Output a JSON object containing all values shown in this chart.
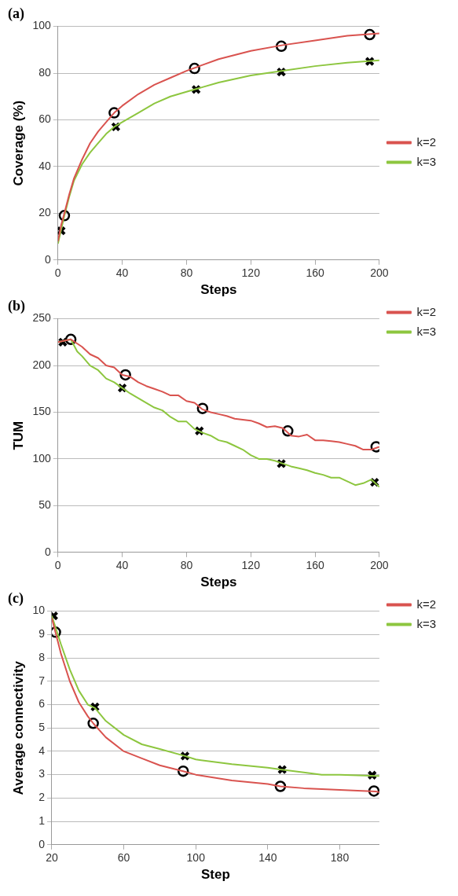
{
  "chart_data": [
    {
      "type": "line",
      "title": "(a)",
      "xlabel": "Steps",
      "ylabel": "Coverage (%)",
      "xlim": [
        0,
        200
      ],
      "xticks": [
        0,
        40,
        80,
        120,
        160,
        200
      ],
      "ylim": [
        0,
        100
      ],
      "yticks": [
        0,
        20,
        40,
        60,
        80,
        100
      ],
      "grid": "y",
      "legend": "right",
      "series": [
        {
          "name": "k=2",
          "color": "#d9534f",
          "x": [
            0,
            2,
            4,
            7,
            10,
            15,
            20,
            25,
            30,
            35,
            40,
            50,
            60,
            70,
            80,
            90,
            100,
            120,
            140,
            160,
            180,
            200
          ],
          "values": [
            8,
            15,
            20,
            28,
            35,
            43,
            50,
            55,
            59,
            63,
            66,
            71,
            75,
            78,
            81,
            83.5,
            86,
            89.5,
            92,
            94,
            96,
            97
          ]
        },
        {
          "name": "k=3",
          "color": "#8dc63f",
          "x": [
            0,
            2,
            4,
            7,
            10,
            15,
            20,
            25,
            30,
            35,
            40,
            50,
            60,
            70,
            80,
            90,
            100,
            120,
            140,
            160,
            180,
            200
          ],
          "values": [
            7,
            13,
            19,
            27,
            34,
            41,
            46,
            50,
            54,
            57,
            59,
            63,
            67,
            70,
            72,
            74,
            76,
            79,
            81,
            83,
            84.5,
            85.5
          ]
        },
        {
          "type": "scatter",
          "marker": "circle",
          "color": "#000000",
          "x": [
            4,
            35,
            85,
            139,
            194
          ],
          "values": [
            19,
            63,
            82,
            91.5,
            96.5
          ]
        },
        {
          "type": "scatter",
          "marker": "cross",
          "color": "#000000",
          "x": [
            2,
            36,
            86,
            139,
            194
          ],
          "values": [
            12.5,
            57,
            73,
            80.5,
            85
          ]
        }
      ]
    },
    {
      "type": "line",
      "title": "(b)",
      "xlabel": "Steps",
      "ylabel": "TUM",
      "xlim": [
        0,
        200
      ],
      "xticks": [
        0,
        40,
        80,
        120,
        160,
        200
      ],
      "ylim": [
        0,
        250
      ],
      "yticks": [
        0,
        50,
        100,
        150,
        200,
        250
      ],
      "grid": "y",
      "legend": "top right",
      "series": [
        {
          "name": "k=2",
          "color": "#d9534f",
          "x": [
            0,
            8,
            15,
            20,
            25,
            30,
            35,
            40,
            45,
            50,
            55,
            60,
            65,
            70,
            75,
            80,
            85,
            90,
            95,
            100,
            105,
            110,
            115,
            120,
            125,
            130,
            135,
            140,
            145,
            150,
            155,
            160,
            165,
            170,
            175,
            180,
            185,
            190,
            195,
            200
          ],
          "values": [
            225,
            228,
            220,
            212,
            208,
            200,
            198,
            190,
            188,
            182,
            178,
            175,
            172,
            168,
            168,
            162,
            160,
            153,
            150,
            148,
            146,
            143,
            142,
            141,
            138,
            134,
            135,
            133,
            125,
            124,
            126,
            120,
            120,
            119,
            118,
            116,
            114,
            110,
            110,
            113
          ]
        },
        {
          "name": "k=3",
          "color": "#8dc63f",
          "x": [
            0,
            8,
            12,
            15,
            20,
            25,
            30,
            35,
            40,
            45,
            50,
            55,
            60,
            65,
            70,
            75,
            80,
            85,
            90,
            95,
            100,
            105,
            110,
            115,
            120,
            125,
            130,
            135,
            140,
            145,
            150,
            155,
            160,
            165,
            170,
            175,
            180,
            185,
            190,
            195,
            200
          ],
          "values": [
            225,
            228,
            215,
            210,
            200,
            195,
            186,
            182,
            176,
            170,
            165,
            160,
            155,
            152,
            145,
            140,
            140,
            132,
            128,
            125,
            120,
            118,
            114,
            110,
            104,
            100,
            100,
            98,
            95,
            92,
            90,
            88,
            85,
            83,
            80,
            80,
            76,
            72,
            74,
            78,
            70
          ]
        },
        {
          "type": "scatter",
          "marker": "circle",
          "color": "#000000",
          "x": [
            8,
            42,
            90,
            143,
            198
          ],
          "values": [
            228,
            190,
            154,
            130,
            113
          ]
        },
        {
          "type": "scatter",
          "marker": "cross",
          "color": "#000000",
          "x": [
            3,
            40,
            88,
            139,
            197
          ],
          "values": [
            225,
            176,
            130,
            95,
            75
          ]
        }
      ]
    },
    {
      "type": "line",
      "title": "(c)",
      "xlabel": "Step",
      "ylabel": "Average connectivity",
      "xlim": [
        20,
        202
      ],
      "xticks": [
        20,
        60,
        100,
        140,
        180
      ],
      "ylim": [
        0,
        10
      ],
      "yticks": [
        0,
        1,
        2,
        3,
        4,
        5,
        6,
        7,
        8,
        9,
        10
      ],
      "grid": "y",
      "legend": "top right",
      "series": [
        {
          "name": "k=2",
          "color": "#d9534f",
          "x": [
            20,
            22,
            25,
            30,
            35,
            40,
            43,
            50,
            60,
            70,
            80,
            93,
            100,
            120,
            140,
            147,
            160,
            180,
            200,
            202
          ],
          "values": [
            9.7,
            9.1,
            8.2,
            7.0,
            6.1,
            5.5,
            5.2,
            4.6,
            4.0,
            3.7,
            3.4,
            3.15,
            3.0,
            2.75,
            2.6,
            2.5,
            2.42,
            2.35,
            2.28,
            2.25
          ]
        },
        {
          "name": "k=3",
          "color": "#8dc63f",
          "x": [
            20,
            25,
            30,
            35,
            40,
            44,
            50,
            60,
            70,
            80,
            94,
            100,
            120,
            140,
            147,
            160,
            170,
            180,
            200,
            202
          ],
          "values": [
            9.8,
            8.6,
            7.5,
            6.6,
            6.0,
            5.85,
            5.3,
            4.7,
            4.3,
            4.1,
            3.8,
            3.65,
            3.45,
            3.3,
            3.22,
            3.1,
            3.0,
            3.0,
            2.95,
            2.95
          ]
        },
        {
          "type": "scatter",
          "marker": "circle",
          "color": "#000000",
          "x": [
            22,
            43,
            93,
            147,
            199
          ],
          "values": [
            9.1,
            5.2,
            3.15,
            2.5,
            2.3
          ]
        },
        {
          "type": "scatter",
          "marker": "cross",
          "color": "#000000",
          "x": [
            21,
            44,
            94,
            148,
            198
          ],
          "values": [
            9.8,
            5.9,
            3.8,
            3.22,
            2.98
          ]
        }
      ]
    }
  ]
}
